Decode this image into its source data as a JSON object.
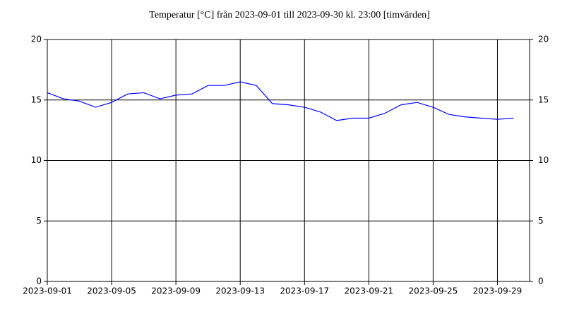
{
  "chart_data": {
    "type": "line",
    "title": "Temperatur [°C] från 2023-09-01 till 2023-09-30 kl. 23:00 [timvärden]",
    "x": [
      "2023-09-01",
      "2023-09-02",
      "2023-09-03",
      "2023-09-04",
      "2023-09-05",
      "2023-09-06",
      "2023-09-07",
      "2023-09-08",
      "2023-09-09",
      "2023-09-10",
      "2023-09-11",
      "2023-09-12",
      "2023-09-13",
      "2023-09-14",
      "2023-09-15",
      "2023-09-16",
      "2023-09-17",
      "2023-09-18",
      "2023-09-19",
      "2023-09-20",
      "2023-09-21",
      "2023-09-22",
      "2023-09-23",
      "2023-09-24",
      "2023-09-25",
      "2023-09-26",
      "2023-09-27",
      "2023-09-28",
      "2023-09-29",
      "2023-09-30"
    ],
    "series": [
      {
        "color": "#0000ff",
        "values": [
          15.6,
          15.1,
          14.9,
          14.4,
          14.8,
          15.5,
          15.6,
          15.1,
          15.4,
          15.5,
          16.2,
          16.2,
          16.5,
          16.2,
          14.7,
          14.6,
          14.4,
          14.0,
          13.3,
          13.5,
          13.5,
          13.9,
          14.6,
          14.8,
          14.4,
          13.8,
          13.6,
          13.5,
          13.4,
          13.5
        ]
      }
    ],
    "xlim": [
      "2023-09-01",
      "2023-10-01"
    ],
    "xticks": [
      "2023-09-01",
      "2023-09-05",
      "2023-09-09",
      "2023-09-13",
      "2023-09-17",
      "2023-09-21",
      "2023-09-25",
      "2023-09-29"
    ],
    "ylim": [
      0,
      20
    ],
    "yticks": [
      0,
      5,
      10,
      15,
      20
    ],
    "grid": true
  }
}
